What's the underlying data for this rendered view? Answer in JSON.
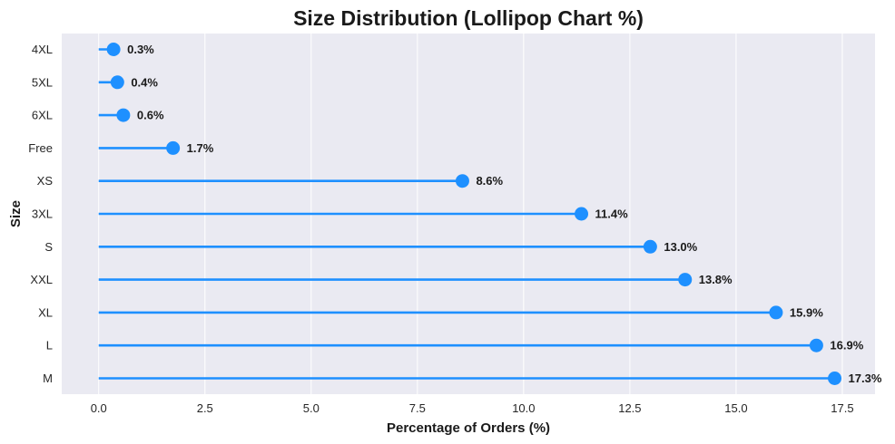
{
  "chart_data": {
    "type": "lollipop",
    "title": "Size Distribution (Lollipop Chart %)",
    "xlabel": "Percentage of Orders (%)",
    "ylabel": "Size",
    "xlim": [
      -0.87,
      18.27
    ],
    "xticks": [
      0.0,
      2.5,
      5.0,
      7.5,
      10.0,
      12.5,
      15.0,
      17.5
    ],
    "xtick_labels": [
      "0.0",
      "2.5",
      "5.0",
      "7.5",
      "10.0",
      "12.5",
      "15.0",
      "17.5"
    ],
    "grid": true,
    "colors": {
      "accent": "#1e90ff",
      "background": "#eaeaf2",
      "grid": "#ffffff"
    },
    "categories": [
      "4XL",
      "5XL",
      "6XL",
      "Free",
      "XS",
      "3XL",
      "S",
      "XXL",
      "XL",
      "L",
      "M"
    ],
    "values": [
      0.35,
      0.44,
      0.58,
      1.75,
      8.56,
      11.36,
      12.98,
      13.8,
      15.94,
      16.89,
      17.32
    ],
    "labels": [
      "0.3%",
      "0.4%",
      "0.6%",
      "1.7%",
      "8.6%",
      "11.4%",
      "13.0%",
      "13.8%",
      "15.9%",
      "16.9%",
      "17.3%"
    ]
  }
}
